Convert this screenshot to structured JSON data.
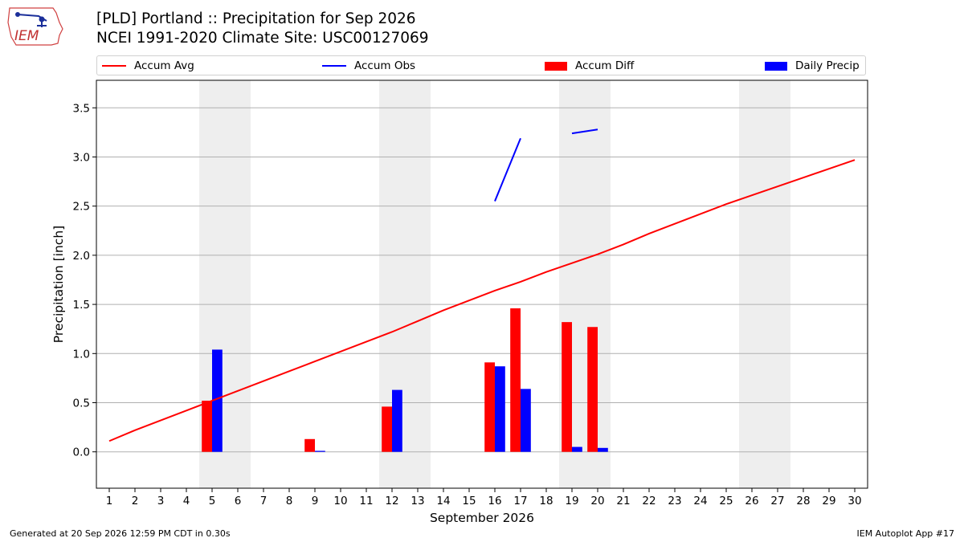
{
  "header": {
    "title_line1": "[PLD] Portland :: Precipitation for Sep 2026",
    "title_line2": "NCEI 1991-2020 Climate Site: USC00127069",
    "logo_text": "IEM"
  },
  "footer": {
    "left": "Generated at 20 Sep 2026 12:59 PM CDT in 0.30s",
    "right": "IEM Autoplot App #17"
  },
  "colors": {
    "avg": "#ff0000",
    "obs": "#0000ff",
    "diff": "#ff0000",
    "daily": "#0000ff",
    "weekend": "#eeeeee",
    "grid": "#b0b0b0"
  },
  "chart_data": {
    "type": "bar",
    "xlabel": "September 2026",
    "ylabel": "Precipitation [inch]",
    "ylim": [
      -0.37,
      3.78
    ],
    "xlim": [
      0.5,
      30.5
    ],
    "yticks": [
      "0.0",
      "0.5",
      "1.0",
      "1.5",
      "2.0",
      "2.5",
      "3.0",
      "3.5"
    ],
    "ytick_values": [
      0,
      0.5,
      1,
      1.5,
      2,
      2.5,
      3,
      3.5
    ],
    "days": [
      1,
      2,
      3,
      4,
      5,
      6,
      7,
      8,
      9,
      10,
      11,
      12,
      13,
      14,
      15,
      16,
      17,
      18,
      19,
      20,
      21,
      22,
      23,
      24,
      25,
      26,
      27,
      28,
      29,
      30
    ],
    "grid": "horizontal",
    "weekend_bands": [
      [
        4.5,
        6.5
      ],
      [
        11.5,
        13.5
      ],
      [
        18.5,
        20.5
      ],
      [
        25.5,
        27.5
      ]
    ],
    "legend": [
      "Accum Avg",
      "Accum Obs",
      "Accum Diff",
      "Daily Precip"
    ],
    "legend_placement": "top",
    "accum_avg": [
      0.11,
      0.22,
      0.32,
      0.42,
      0.52,
      0.62,
      0.72,
      0.82,
      0.92,
      1.02,
      1.12,
      1.22,
      1.33,
      1.44,
      1.54,
      1.64,
      1.73,
      1.83,
      1.92,
      2.01,
      2.11,
      2.22,
      2.32,
      2.42,
      2.52,
      2.61,
      2.7,
      2.79,
      2.88,
      2.97
    ],
    "accum_obs_segments": [
      {
        "x": [
          16,
          17
        ],
        "y": [
          2.55,
          3.19
        ]
      },
      {
        "x": [
          19,
          20
        ],
        "y": [
          3.24,
          3.28
        ]
      }
    ],
    "accum_diff": [
      {
        "day": 5,
        "value": 0.52
      },
      {
        "day": 9,
        "value": 0.13
      },
      {
        "day": 12,
        "value": 0.46
      },
      {
        "day": 16,
        "value": 0.91
      },
      {
        "day": 17,
        "value": 1.46
      },
      {
        "day": 19,
        "value": 1.32
      },
      {
        "day": 20,
        "value": 1.27
      }
    ],
    "daily_precip": [
      {
        "day": 5,
        "value": 1.04
      },
      {
        "day": 9,
        "value": 0.01
      },
      {
        "day": 12,
        "value": 0.63
      },
      {
        "day": 16,
        "value": 0.87
      },
      {
        "day": 17,
        "value": 0.64
      },
      {
        "day": 19,
        "value": 0.05
      },
      {
        "day": 20,
        "value": 0.04
      }
    ]
  }
}
